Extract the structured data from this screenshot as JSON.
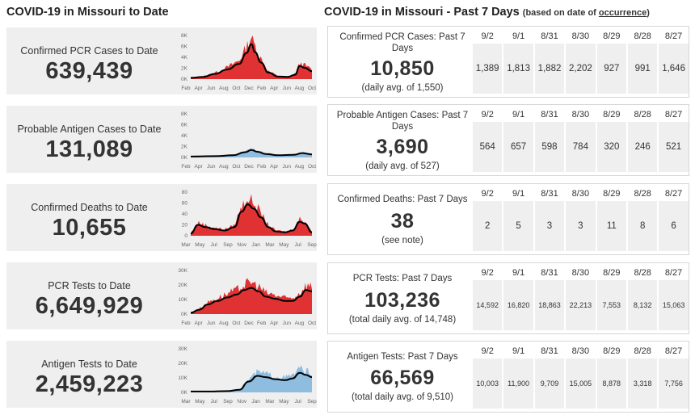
{
  "left_header": "COVID-19 in Missouri to Date",
  "right_header": {
    "title": "COVID-19 in Missouri - Past 7 Days",
    "note_prefix": "(based on date of ",
    "note_link": "occurrence",
    "note_suffix": ")"
  },
  "dates": [
    "9/2",
    "9/1",
    "8/31",
    "8/30",
    "8/29",
    "8/28",
    "8/27"
  ],
  "left_cards": [
    {
      "title": "Confirmed PCR Cases to Date",
      "value": "639,439",
      "y_ticks": [
        "8K",
        "6K",
        "4K",
        "2K",
        "0K"
      ],
      "x_ticks": [
        "Feb",
        "Apr",
        "Jun",
        "Aug",
        "Oct",
        "Dec",
        "Feb",
        "Apr",
        "Jun",
        "Aug",
        "Oct"
      ],
      "fill_color": "#e03232"
    },
    {
      "title": "Probable Antigen Cases to Date",
      "value": "131,089",
      "y_ticks": [
        "8K",
        "6K",
        "4K",
        "2K",
        "0K"
      ],
      "x_ticks": [
        "Feb",
        "Apr",
        "Jun",
        "Aug",
        "Oct",
        "Dec",
        "Feb",
        "Apr",
        "Jun",
        "Aug",
        "Oct"
      ],
      "fill_color": "#8fbde0"
    },
    {
      "title": "Confirmed Deaths to Date",
      "value": "10,655",
      "y_ticks": [
        "80",
        "60",
        "40",
        "20",
        "0"
      ],
      "x_ticks": [
        "Mar",
        "May",
        "Jul",
        "Sep",
        "Nov",
        "Jan",
        "Mar",
        "May",
        "Jul",
        "Sep"
      ],
      "fill_color": "#e03232"
    },
    {
      "title": "PCR Tests to Date",
      "value": "6,649,929",
      "y_ticks": [
        "30K",
        "20K",
        "10K",
        "0K"
      ],
      "x_ticks": [
        "Feb",
        "Apr",
        "Jun",
        "Aug",
        "Oct",
        "Dec",
        "Feb",
        "Apr",
        "Jun",
        "Aug",
        "Oct"
      ],
      "fill_color": "#e03232"
    },
    {
      "title": "Antigen Tests to Date",
      "value": "2,459,223",
      "y_ticks": [
        "30K",
        "20K",
        "10K",
        "0K"
      ],
      "x_ticks": [
        "Mar",
        "May",
        "Jul",
        "Sep",
        "Nov",
        "Jan",
        "Mar",
        "May",
        "Jul",
        "Sep"
      ],
      "fill_color": "#8fbde0"
    }
  ],
  "right_cards": [
    {
      "title": "Confirmed PCR Cases: Past 7 Days",
      "value": "10,850",
      "note": "(daily avg. of 1,550)",
      "values": [
        "1,389",
        "1,813",
        "1,882",
        "2,202",
        "927",
        "991",
        "1,646"
      ]
    },
    {
      "title": "Probable Antigen Cases: Past 7 Days",
      "value": "3,690",
      "note": "(daily avg. of 527)",
      "values": [
        "564",
        "657",
        "598",
        "784",
        "320",
        "246",
        "521"
      ]
    },
    {
      "title": "Confirmed Deaths: Past 7 Days",
      "value": "38",
      "note": "(see note)",
      "values": [
        "2",
        "5",
        "3",
        "3",
        "11",
        "8",
        "6"
      ]
    },
    {
      "title": "PCR Tests: Past 7 Days",
      "value": "103,236",
      "note": "(total daily avg. of 14,748)",
      "values": [
        "14,592",
        "16,820",
        "18,863",
        "22,213",
        "7,553",
        "8,132",
        "15,063"
      ]
    },
    {
      "title": "Antigen Tests: Past 7 Days",
      "value": "66,569",
      "note": "(total daily avg. of 9,510)",
      "values": [
        "10,003",
        "11,900",
        "9,709",
        "15,005",
        "8,878",
        "3,318",
        "7,756"
      ]
    }
  ]
}
